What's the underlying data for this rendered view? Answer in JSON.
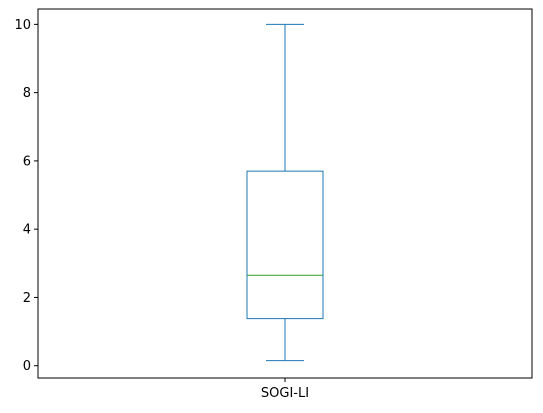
{
  "chart_data": {
    "type": "box",
    "categories": [
      "SOGI-LI"
    ],
    "series": [
      {
        "whisker_low": 0.15,
        "q1": 1.38,
        "median": 2.65,
        "q3": 5.7,
        "whisker_high": 10.0
      }
    ],
    "ylim": [
      -0.36,
      10.45
    ],
    "yticks": [
      0,
      2,
      4,
      6,
      8,
      10
    ],
    "ytick_labels": [
      "0",
      "2",
      "4",
      "6",
      "8",
      "10"
    ],
    "grid": false,
    "colors": {
      "box": "#1f77b4",
      "median": "#2ca02c",
      "axes": "#000000"
    }
  }
}
